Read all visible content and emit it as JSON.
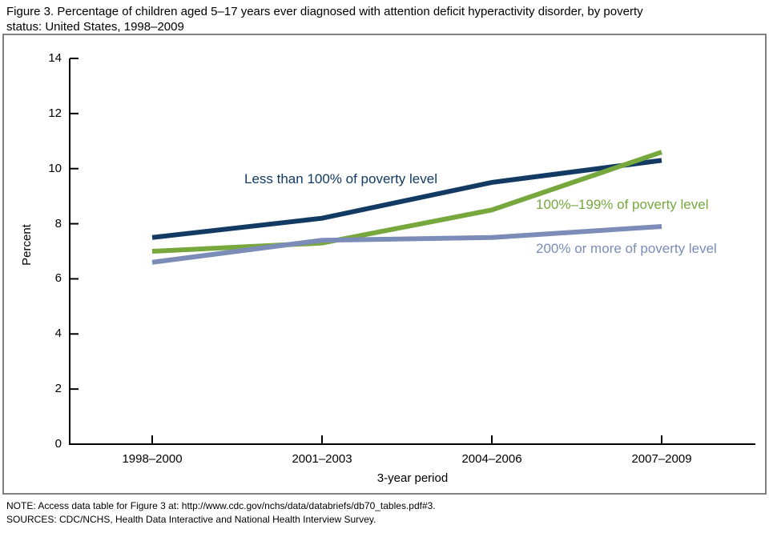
{
  "header": {
    "title_line1": "Figure 3. Percentage of children aged 5–17 years ever diagnosed with attention deficit hyperactivity disorder, by poverty",
    "title_line2": "status: United States, 1998–2009"
  },
  "chart_data": {
    "type": "line",
    "title": "Figure 3. Percentage of children aged 5–17 years ever diagnosed with attention deficit hyperactivity disorder, by poverty status: United States, 1998–2009",
    "categories": [
      "1998–2000",
      "2001–2003",
      "2004–2006",
      "2007–2009"
    ],
    "series": [
      {
        "name": "Less than 100% of poverty level",
        "color": "#123A63",
        "values": [
          7.5,
          8.2,
          9.5,
          10.3
        ]
      },
      {
        "name": "100%–199% of poverty level",
        "color": "#76A83E",
        "values": [
          7.0,
          7.3,
          8.5,
          10.6
        ]
      },
      {
        "name": "200% or more of poverty level",
        "color": "#7C8CB8",
        "values": [
          6.6,
          7.4,
          7.5,
          7.9
        ]
      }
    ],
    "xlabel": "3-year period",
    "ylabel": "Percent",
    "ylim": [
      0,
      14
    ],
    "yticks": [
      0,
      2,
      4,
      6,
      8,
      10,
      12,
      14
    ],
    "grid": false,
    "legend_position": "inline-labels-on-plot"
  },
  "notes": {
    "note": "NOTE: Access data table for Figure 3 at: http://www.cdc.gov/nchs/data/databriefs/db70_tables.pdf#3.",
    "sources": "SOURCES: CDC/NCHS, Health Data Interactive and National Health Interview Survey."
  },
  "colors": {
    "axis": "#000000",
    "chart_border": "#808080",
    "background": "#ffffff"
  }
}
